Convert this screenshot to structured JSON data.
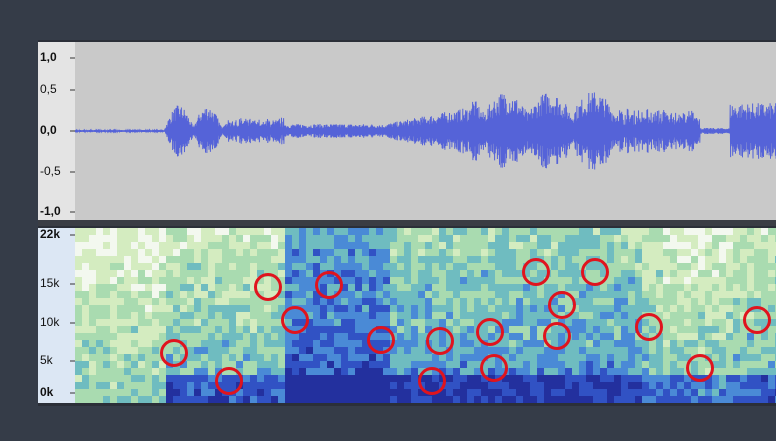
{
  "waveform": {
    "axis_labels": [
      "1,0",
      "0,5",
      "0,0",
      "-0,5",
      "-1,0"
    ]
  },
  "spectrogram": {
    "axis_labels": [
      "22k",
      "15k",
      "10k",
      "5k",
      "0k"
    ]
  }
}
